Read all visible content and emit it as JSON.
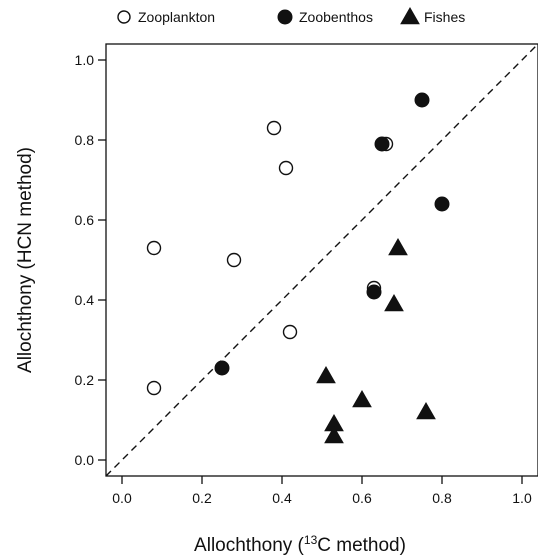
{
  "chart_data": {
    "type": "scatter",
    "xlabel_prefix": "Allochthony (",
    "xlabel_sup": "13",
    "xlabel_suffix": "C method)",
    "ylabel": "Allochthony (HCN method)",
    "xlim": [
      -0.04,
      1.04
    ],
    "ylim": [
      -0.04,
      1.04
    ],
    "xticks": [
      "0.0",
      "0.2",
      "0.4",
      "0.6",
      "0.8",
      "1.0"
    ],
    "yticks": [
      "0.0",
      "0.2",
      "0.4",
      "0.6",
      "0.8",
      "1.0"
    ],
    "reference_line": {
      "type": "identity",
      "style": "dashed"
    },
    "legend": {
      "placement": "top"
    },
    "series": [
      {
        "name": "Zooplankton",
        "marker": "open-circle",
        "points": [
          {
            "x": 0.08,
            "y": 0.18
          },
          {
            "x": 0.08,
            "y": 0.53
          },
          {
            "x": 0.28,
            "y": 0.5
          },
          {
            "x": 0.38,
            "y": 0.83
          },
          {
            "x": 0.41,
            "y": 0.73
          },
          {
            "x": 0.42,
            "y": 0.32
          },
          {
            "x": 0.63,
            "y": 0.43
          },
          {
            "x": 0.66,
            "y": 0.79
          }
        ]
      },
      {
        "name": "Zoobenthos",
        "marker": "filled-circle",
        "points": [
          {
            "x": 0.25,
            "y": 0.23
          },
          {
            "x": 0.63,
            "y": 0.42
          },
          {
            "x": 0.65,
            "y": 0.79
          },
          {
            "x": 0.75,
            "y": 0.9
          },
          {
            "x": 0.8,
            "y": 0.64
          }
        ]
      },
      {
        "name": "Fishes",
        "marker": "filled-triangle",
        "points": [
          {
            "x": 0.51,
            "y": 0.21
          },
          {
            "x": 0.53,
            "y": 0.09
          },
          {
            "x": 0.53,
            "y": 0.06
          },
          {
            "x": 0.6,
            "y": 0.15
          },
          {
            "x": 0.68,
            "y": 0.39
          },
          {
            "x": 0.69,
            "y": 0.53
          },
          {
            "x": 0.76,
            "y": 0.12
          }
        ]
      }
    ]
  }
}
